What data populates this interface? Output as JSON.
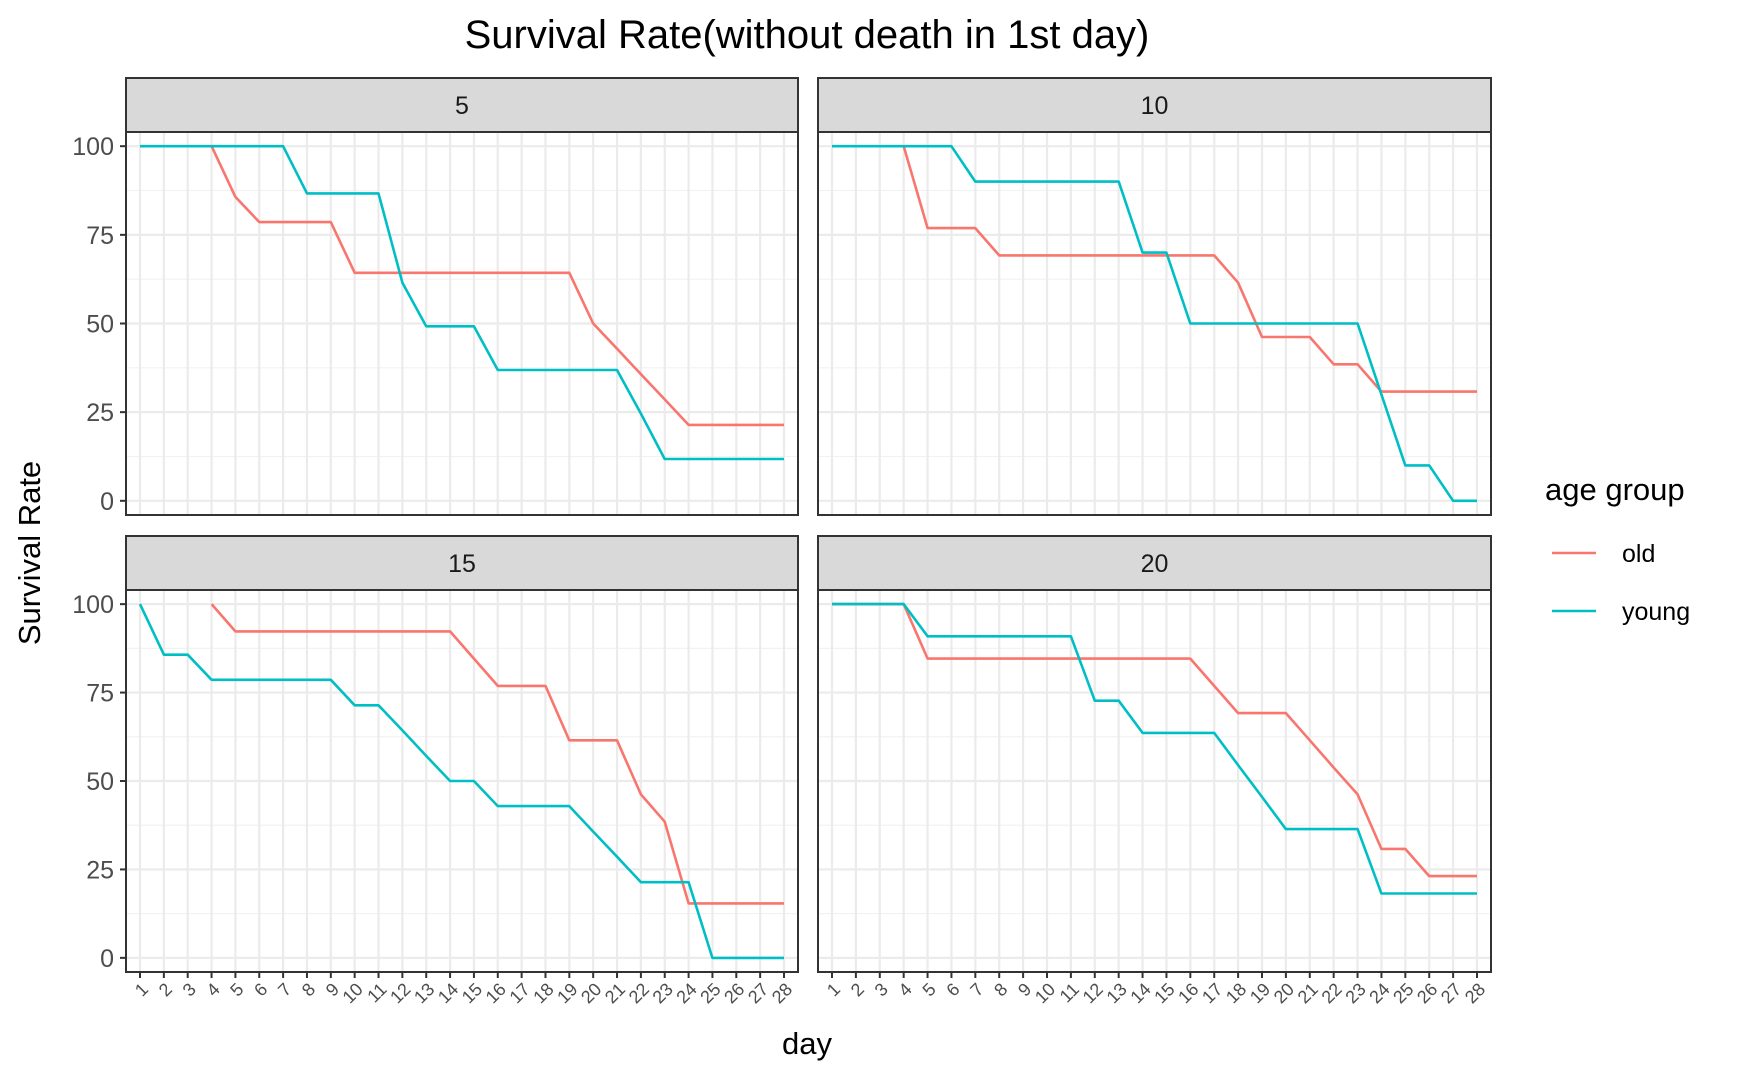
{
  "chart_data": {
    "type": "line",
    "title": "Survival Rate(without death in 1st day)",
    "xlabel": "day",
    "ylabel": "Survival Rate",
    "x_ticks": [
      1,
      2,
      3,
      4,
      5,
      6,
      7,
      8,
      9,
      10,
      11,
      12,
      13,
      14,
      15,
      16,
      17,
      18,
      19,
      20,
      21,
      22,
      23,
      24,
      25,
      26,
      27,
      28
    ],
    "xlim": [
      1,
      28
    ],
    "y_ticks": [
      0,
      25,
      50,
      75,
      100
    ],
    "ylim": [
      -4,
      104
    ],
    "grid": true,
    "legend": {
      "title": "age group",
      "position": "right",
      "entries": [
        {
          "name": "old",
          "color": "#F8766D"
        },
        {
          "name": "young",
          "color": "#00BFC4"
        }
      ]
    },
    "panels": [
      {
        "label": "5",
        "series": [
          {
            "name": "old",
            "color": "#F8766D",
            "x": [
              4,
              5,
              6,
              7,
              8,
              9,
              10,
              11,
              12,
              13,
              14,
              15,
              16,
              17,
              18,
              19,
              20,
              21,
              22,
              23,
              24,
              25,
              26,
              27,
              28
            ],
            "values": [
              100,
              85.7,
              78.6,
              78.6,
              78.6,
              78.6,
              64.3,
              64.3,
              64.3,
              64.3,
              64.3,
              64.3,
              64.3,
              64.3,
              64.3,
              64.3,
              50,
              42.9,
              35.7,
              28.6,
              21.4,
              21.4,
              21.4,
              21.4,
              21.4
            ]
          },
          {
            "name": "young",
            "color": "#00BFC4",
            "x": [
              1,
              2,
              3,
              4,
              5,
              6,
              7,
              8,
              9,
              10,
              11,
              12,
              13,
              14,
              15,
              16,
              17,
              18,
              19,
              20,
              21,
              22,
              23,
              24,
              25,
              26,
              27,
              28
            ],
            "values": [
              100,
              100,
              100,
              100,
              100,
              100,
              100,
              86.7,
              86.7,
              86.7,
              86.7,
              61.5,
              49.2,
              49.2,
              49.2,
              36.9,
              36.9,
              36.9,
              36.9,
              36.9,
              36.9,
              24.6,
              11.8,
              11.8,
              11.8,
              11.8,
              11.8,
              11.8
            ]
          }
        ]
      },
      {
        "label": "10",
        "series": [
          {
            "name": "old",
            "color": "#F8766D",
            "x": [
              4,
              5,
              6,
              7,
              8,
              9,
              10,
              11,
              12,
              13,
              14,
              15,
              16,
              17,
              18,
              19,
              20,
              21,
              22,
              23,
              24,
              25,
              26,
              27,
              28
            ],
            "values": [
              100,
              76.9,
              76.9,
              76.9,
              69.2,
              69.2,
              69.2,
              69.2,
              69.2,
              69.2,
              69.2,
              69.2,
              69.2,
              69.2,
              61.5,
              46.2,
              46.2,
              46.2,
              38.5,
              38.5,
              30.8,
              30.8,
              30.8,
              30.8,
              30.8
            ]
          },
          {
            "name": "young",
            "color": "#00BFC4",
            "x": [
              1,
              2,
              3,
              4,
              5,
              6,
              7,
              8,
              9,
              10,
              11,
              12,
              13,
              14,
              15,
              16,
              17,
              18,
              19,
              20,
              21,
              22,
              23,
              24,
              25,
              26,
              27,
              28
            ],
            "values": [
              100,
              100,
              100,
              100,
              100,
              100,
              90,
              90,
              90,
              90,
              90,
              90,
              90,
              70,
              70,
              50,
              50,
              50,
              50,
              50,
              50,
              50,
              50,
              30,
              10,
              10,
              0,
              0
            ]
          }
        ]
      },
      {
        "label": "15",
        "series": [
          {
            "name": "old",
            "color": "#F8766D",
            "x": [
              4,
              5,
              6,
              7,
              8,
              9,
              10,
              11,
              12,
              13,
              14,
              15,
              16,
              17,
              18,
              19,
              20,
              21,
              22,
              23,
              24,
              25,
              26,
              27,
              28
            ],
            "values": [
              100,
              92.3,
              92.3,
              92.3,
              92.3,
              92.3,
              92.3,
              92.3,
              92.3,
              92.3,
              92.3,
              84.6,
              76.9,
              76.9,
              76.9,
              61.5,
              61.5,
              61.5,
              46.2,
              38.5,
              15.4,
              15.4,
              15.4,
              15.4,
              15.4
            ]
          },
          {
            "name": "young",
            "color": "#00BFC4",
            "x": [
              1,
              2,
              3,
              4,
              5,
              6,
              7,
              8,
              9,
              10,
              11,
              12,
              13,
              14,
              15,
              16,
              17,
              18,
              19,
              20,
              21,
              22,
              23,
              24,
              25,
              26,
              27,
              28
            ],
            "values": [
              100,
              85.7,
              85.7,
              78.6,
              78.6,
              78.6,
              78.6,
              78.6,
              78.6,
              71.4,
              71.4,
              64.3,
              57.1,
              50,
              50,
              42.9,
              42.9,
              42.9,
              42.9,
              35.7,
              28.6,
              21.4,
              21.4,
              21.4,
              0,
              0,
              0,
              0
            ]
          }
        ]
      },
      {
        "label": "20",
        "series": [
          {
            "name": "old",
            "color": "#F8766D",
            "x": [
              1,
              2,
              3,
              4,
              5,
              6,
              7,
              8,
              9,
              10,
              11,
              12,
              13,
              14,
              15,
              16,
              17,
              18,
              19,
              20,
              21,
              22,
              23,
              24,
              25,
              26,
              27,
              28
            ],
            "values": [
              100,
              100,
              100,
              100,
              84.6,
              84.6,
              84.6,
              84.6,
              84.6,
              84.6,
              84.6,
              84.6,
              84.6,
              84.6,
              84.6,
              84.6,
              76.9,
              69.2,
              69.2,
              69.2,
              61.5,
              53.8,
              46.2,
              30.8,
              30.8,
              23.1,
              23.1,
              23.1
            ]
          },
          {
            "name": "young",
            "color": "#00BFC4",
            "x": [
              1,
              2,
              3,
              4,
              5,
              6,
              7,
              8,
              9,
              10,
              11,
              12,
              13,
              14,
              15,
              16,
              17,
              18,
              19,
              20,
              21,
              22,
              23,
              24,
              25,
              26,
              27,
              28
            ],
            "values": [
              100,
              100,
              100,
              100,
              90.9,
              90.9,
              90.9,
              90.9,
              90.9,
              90.9,
              90.9,
              72.7,
              72.7,
              63.6,
              63.6,
              63.6,
              63.6,
              54.5,
              45.5,
              36.4,
              36.4,
              36.4,
              36.4,
              18.2,
              18.2,
              18.2,
              18.2,
              18.2
            ]
          }
        ]
      }
    ]
  }
}
